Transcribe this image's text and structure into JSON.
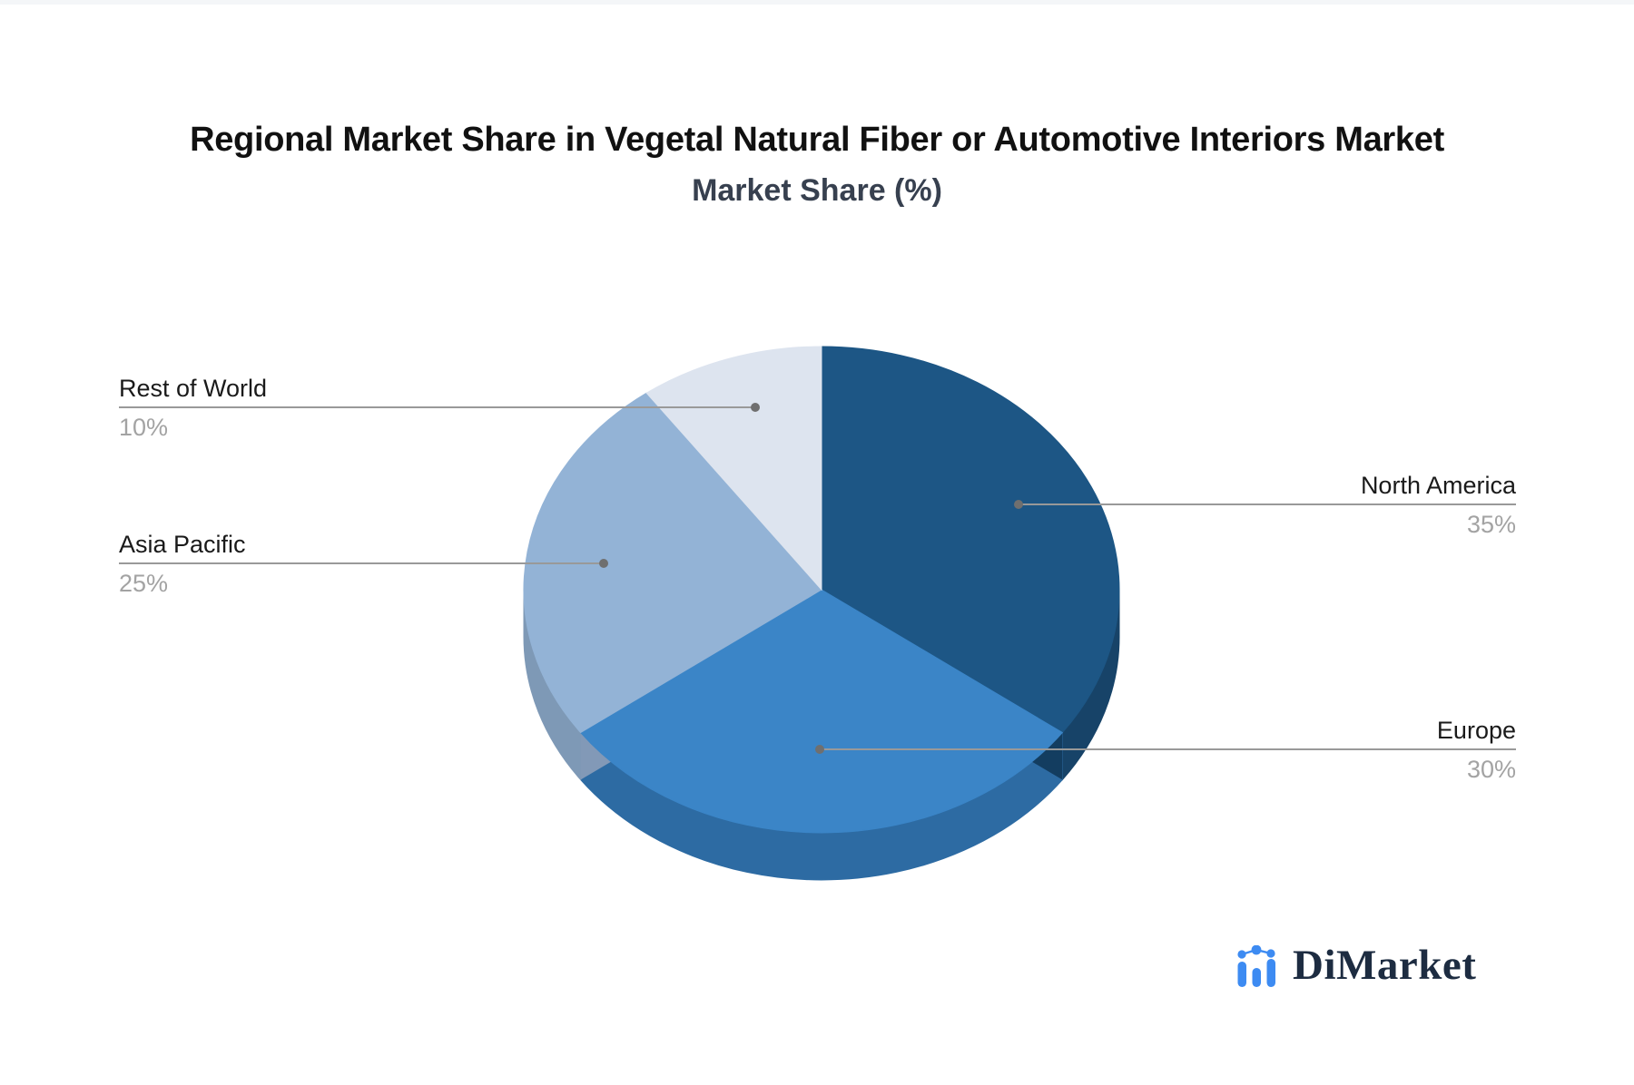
{
  "page": {
    "background": "#ffffff",
    "top_strip_color": "#f4f6f8"
  },
  "header": {
    "title": "Regional Market Share in Vegetal Natural Fiber or Automotive Interiors Market",
    "subtitle": "Market Share (%)"
  },
  "chart_data": {
    "type": "pie",
    "style": "3d",
    "title": "Regional Market Share in Vegetal Natural Fiber or Automotive Interiors Market",
    "subtitle": "Market Share (%)",
    "unit": "%",
    "categories": [
      "North America",
      "Europe",
      "Asia Pacific",
      "Rest of World"
    ],
    "values": [
      35,
      30,
      25,
      10
    ],
    "start_angle_deg": 0,
    "direction": "clockwise",
    "legend": "none",
    "labels_style": "callout-lines-with-dots"
  },
  "slices": [
    {
      "name": "North America",
      "value": 35,
      "value_label": "35%",
      "color": "#1d5685",
      "side_color": "#174368",
      "edge_color": "#133d60",
      "label_side": "right"
    },
    {
      "name": "Europe",
      "value": 30,
      "value_label": "30%",
      "color": "#3b85c7",
      "side_color": "#2d6ba3",
      "label_side": "right"
    },
    {
      "name": "Asia Pacific",
      "value": 25,
      "value_label": "25%",
      "color": "#93b3d6",
      "side_color": "#7e99b6",
      "start_edge_color": "#8299b7",
      "label_side": "left"
    },
    {
      "name": "Rest of World",
      "value": 10,
      "value_label": "10%",
      "color": "#dde4ef",
      "side_color": "#c5cfdf",
      "label_side": "left"
    }
  ],
  "connectors": {
    "line_color": "#999999",
    "dot_color": "#6f6f6f"
  },
  "logo": {
    "text": "DiMarket",
    "icon": "bar-chart-sparkline-icon",
    "icon_color": "#3d8bf2",
    "text_color": "#1d2c41"
  }
}
